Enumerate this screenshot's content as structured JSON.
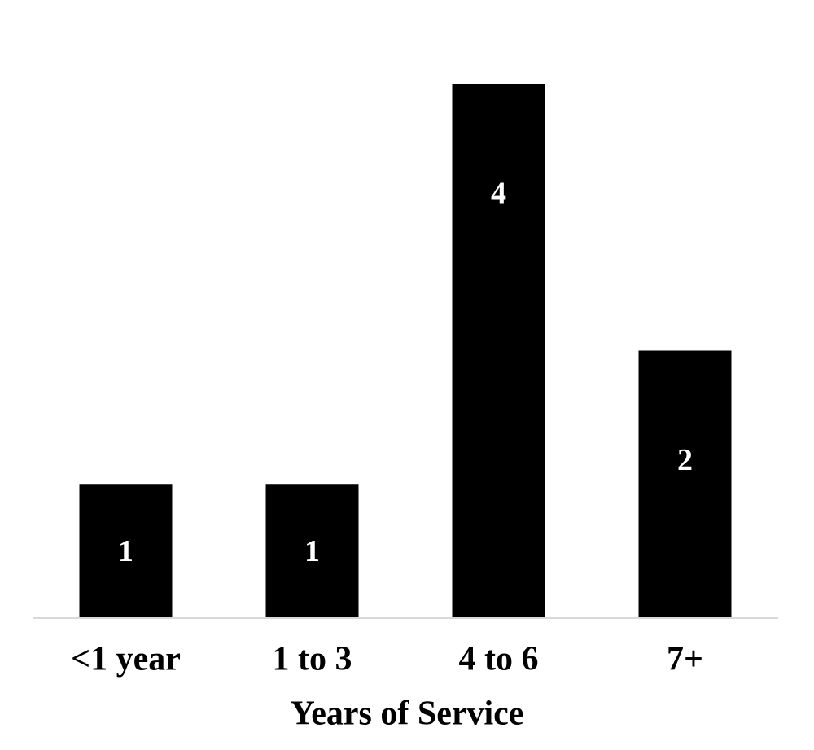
{
  "chart_data": {
    "type": "bar",
    "categories": [
      "<1 year",
      "1 to 3",
      "4 to 6",
      "7+"
    ],
    "values": [
      1,
      1,
      4,
      2
    ],
    "data_labels": [
      "1",
      "1",
      "4",
      "2"
    ],
    "title": "",
    "xlabel": "Years of Service",
    "ylabel": "",
    "ylim": [
      0,
      4
    ],
    "grid": false,
    "legend": "none",
    "colors": {
      "bar": "#000000",
      "data_label": "#ffffff",
      "baseline": "#d9d9d9"
    }
  }
}
